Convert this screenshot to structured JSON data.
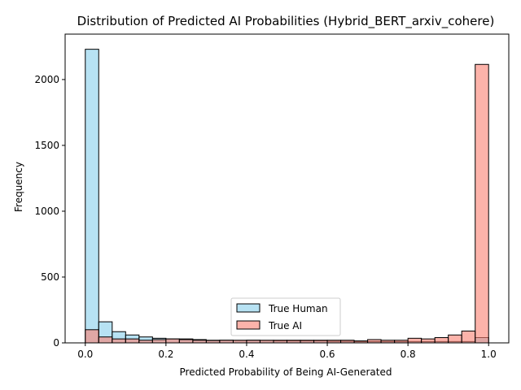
{
  "chart_data": {
    "type": "bar",
    "title": "Distribution of Predicted AI Probabilities (Hybrid_BERT_arxiv_cohere)",
    "xlabel": "Predicted Probability of Being AI-Generated",
    "ylabel": "Frequency",
    "xlim": [
      -0.05,
      1.05
    ],
    "ylim": [
      0,
      2345
    ],
    "grid": false,
    "legend_position": "lower-center",
    "x_ticks": [
      {
        "value": 0.0,
        "label": "0.0"
      },
      {
        "value": 0.2,
        "label": "0.2"
      },
      {
        "value": 0.4,
        "label": "0.4"
      },
      {
        "value": 0.6,
        "label": "0.6"
      },
      {
        "value": 0.8,
        "label": "0.8"
      },
      {
        "value": 1.0,
        "label": "1.0"
      }
    ],
    "y_ticks": [
      {
        "value": 0,
        "label": "0"
      },
      {
        "value": 500,
        "label": "500"
      },
      {
        "value": 1000,
        "label": "1000"
      },
      {
        "value": 1500,
        "label": "1500"
      },
      {
        "value": 2000,
        "label": "2000"
      }
    ],
    "bin_edges": [
      0,
      0.0333,
      0.0667,
      0.1,
      0.1333,
      0.1667,
      0.2,
      0.2333,
      0.2667,
      0.3,
      0.3333,
      0.3667,
      0.4,
      0.4333,
      0.4667,
      0.5,
      0.5333,
      0.5667,
      0.6,
      0.6333,
      0.6667,
      0.7,
      0.7333,
      0.7667,
      0.8,
      0.8333,
      0.8667,
      0.9,
      0.9333,
      0.9667,
      1.0
    ],
    "series": [
      {
        "name": "True Human",
        "color": "#87CEEB",
        "values": [
          2230,
          160,
          85,
          60,
          45,
          35,
          30,
          30,
          25,
          20,
          20,
          18,
          20,
          18,
          15,
          15,
          15,
          15,
          12,
          12,
          10,
          10,
          10,
          10,
          10,
          10,
          10,
          10,
          10,
          40
        ]
      },
      {
        "name": "True AI",
        "color": "#FA8072",
        "values": [
          100,
          45,
          30,
          30,
          20,
          25,
          30,
          25,
          20,
          18,
          20,
          20,
          20,
          20,
          20,
          20,
          20,
          20,
          20,
          20,
          15,
          25,
          20,
          20,
          35,
          30,
          40,
          60,
          90,
          2115
        ]
      }
    ]
  }
}
